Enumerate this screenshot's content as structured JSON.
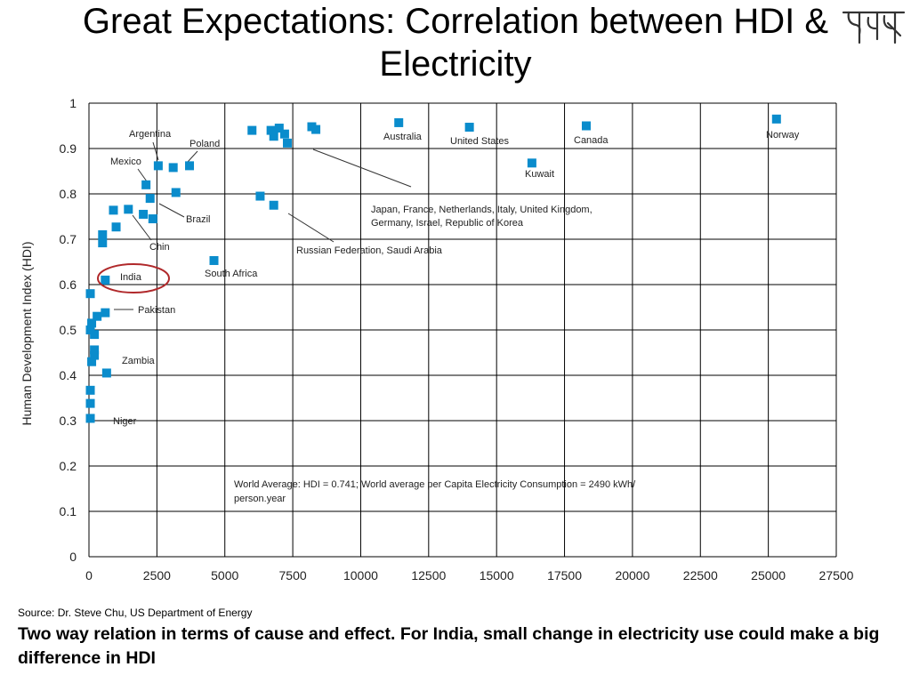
{
  "slide": {
    "title": "Great Expectations: Correlation between HDI & Electricity",
    "source": "Source: Dr. Steve Chu, US Department of Energy",
    "caption": "Two way relation in terms of cause and effect. For India, small change in electricity use could make a big difference in HDI"
  },
  "colors": {
    "marker": "#0a8ccc",
    "highlight_circle": "#b0282a",
    "grid": "#000000"
  },
  "chart_data": {
    "type": "scatter",
    "title": "",
    "xlabel": "",
    "ylabel": "Human Development Index (HDI)",
    "xlim": [
      0,
      27500
    ],
    "ylim": [
      0,
      1
    ],
    "grid": true,
    "x_ticks": [
      0,
      2500,
      5000,
      7500,
      10000,
      12500,
      15000,
      17500,
      20000,
      22500,
      25000,
      27500
    ],
    "y_ticks": [
      0,
      0.1,
      0.2,
      0.3,
      0.4,
      0.5,
      0.6,
      0.7,
      0.8,
      0.9,
      1
    ],
    "x_tick_labels": [
      "0",
      "2500",
      "5000",
      "7500",
      "10000",
      "12500",
      "15000",
      "17500",
      "20000",
      "22500",
      "25000",
      "27500"
    ],
    "y_tick_labels": [
      "0",
      "0.1",
      "0.2",
      "0.3",
      "0.4",
      "0.5",
      "0.6",
      "0.7",
      "0.8",
      "0.9",
      "1"
    ],
    "points": [
      {
        "x": 25300,
        "y": 0.965
      },
      {
        "x": 18300,
        "y": 0.95
      },
      {
        "x": 14000,
        "y": 0.947
      },
      {
        "x": 11400,
        "y": 0.957
      },
      {
        "x": 16300,
        "y": 0.868
      },
      {
        "x": 6000,
        "y": 0.94
      },
      {
        "x": 6700,
        "y": 0.94
      },
      {
        "x": 7000,
        "y": 0.945
      },
      {
        "x": 6800,
        "y": 0.927
      },
      {
        "x": 7200,
        "y": 0.932
      },
      {
        "x": 7300,
        "y": 0.912
      },
      {
        "x": 8200,
        "y": 0.948
      },
      {
        "x": 8350,
        "y": 0.942
      },
      {
        "x": 6300,
        "y": 0.795
      },
      {
        "x": 6800,
        "y": 0.775
      },
      {
        "x": 4600,
        "y": 0.653
      },
      {
        "x": 2550,
        "y": 0.862
      },
      {
        "x": 3100,
        "y": 0.858
      },
      {
        "x": 3700,
        "y": 0.862
      },
      {
        "x": 2100,
        "y": 0.82
      },
      {
        "x": 2250,
        "y": 0.79
      },
      {
        "x": 3200,
        "y": 0.803
      },
      {
        "x": 900,
        "y": 0.764
      },
      {
        "x": 1450,
        "y": 0.766
      },
      {
        "x": 2000,
        "y": 0.755
      },
      {
        "x": 2350,
        "y": 0.745
      },
      {
        "x": 1000,
        "y": 0.727
      },
      {
        "x": 500,
        "y": 0.71
      },
      {
        "x": 500,
        "y": 0.692
      },
      {
        "x": 600,
        "y": 0.61
      },
      {
        "x": 50,
        "y": 0.58
      },
      {
        "x": 600,
        "y": 0.538
      },
      {
        "x": 300,
        "y": 0.53
      },
      {
        "x": 100,
        "y": 0.515
      },
      {
        "x": 50,
        "y": 0.5
      },
      {
        "x": 200,
        "y": 0.49
      },
      {
        "x": 200,
        "y": 0.456
      },
      {
        "x": 200,
        "y": 0.444
      },
      {
        "x": 100,
        "y": 0.43
      },
      {
        "x": 650,
        "y": 0.405
      },
      {
        "x": 50,
        "y": 0.367
      },
      {
        "x": 50,
        "y": 0.338
      },
      {
        "x": 50,
        "y": 0.305
      }
    ],
    "annotations": [
      {
        "text": "Norway"
      },
      {
        "text": "Canada"
      },
      {
        "text": "United States"
      },
      {
        "text": "Australia"
      },
      {
        "text": "Kuwait"
      },
      {
        "text": "Argentina"
      },
      {
        "text": "Poland"
      },
      {
        "text": "Mexico"
      },
      {
        "text": "Brazil"
      },
      {
        "text": "Chin"
      },
      {
        "text": "India"
      },
      {
        "text": "South Africa"
      },
      {
        "text": "Pakistan"
      },
      {
        "text": "Zambia"
      },
      {
        "text": "Niger"
      },
      {
        "text": "Japan, France, Netherlands, Italy, United Kingdom,"
      },
      {
        "text": "Germany, Israel, Republic of Korea"
      },
      {
        "text": "Russian Federation, Saudi Arabia"
      },
      {
        "text": "World Average: HDI = 0.741; World average per Capita Electricity Consumption = 2490 kWh/"
      },
      {
        "text": "person.year"
      }
    ]
  }
}
